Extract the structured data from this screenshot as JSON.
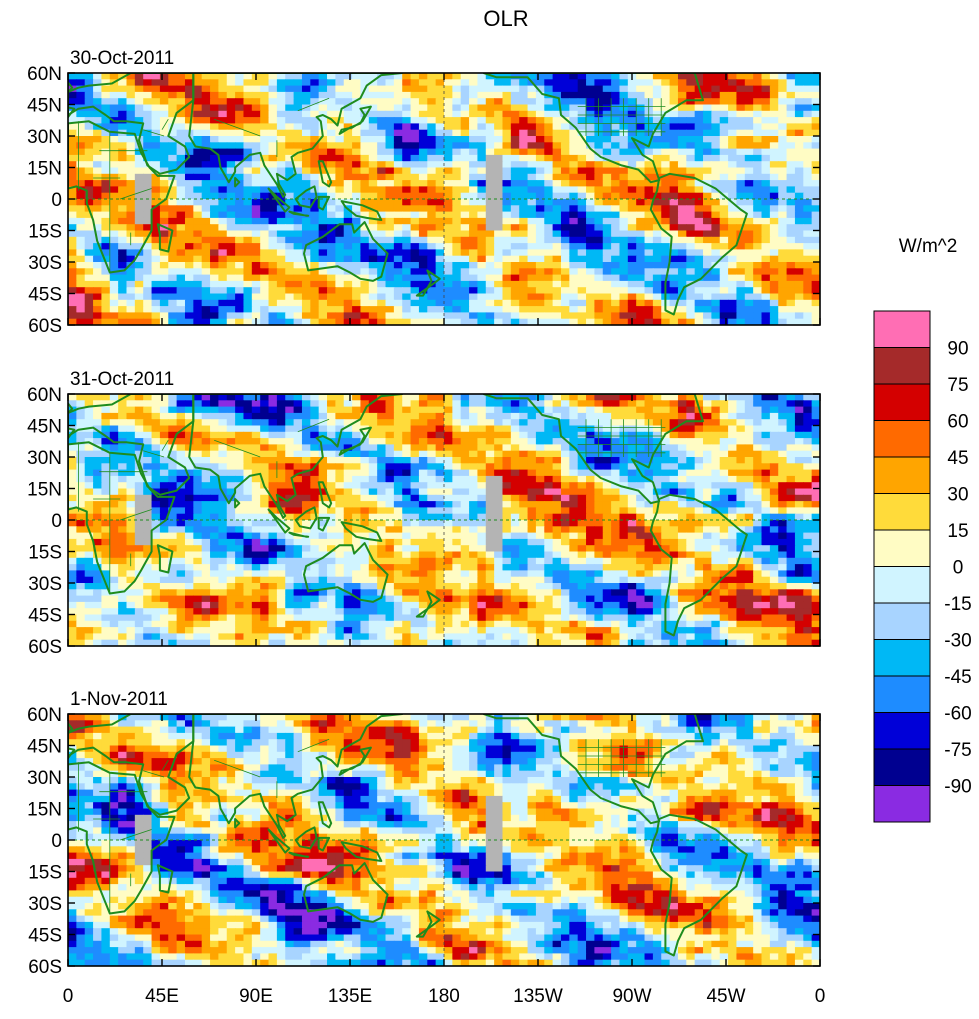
{
  "chart_data": {
    "type": "heatmap",
    "title": "OLR",
    "units_label": "W/m^2",
    "panels": [
      {
        "label": "30-Oct-2011"
      },
      {
        "label": "31-Oct-2011"
      },
      {
        "label": "1-Nov-2011"
      }
    ],
    "lat_ticks": [
      "60N",
      "45N",
      "30N",
      "15N",
      "0",
      "15S",
      "30S",
      "45S",
      "60S"
    ],
    "lon_ticks": [
      "0",
      "45E",
      "90E",
      "135E",
      "180",
      "135W",
      "90W",
      "45W",
      "0"
    ],
    "lat_range": [
      -60,
      60
    ],
    "lon_range": [
      0,
      360
    ],
    "colorbar": {
      "labels": [
        "90",
        "75",
        "60",
        "45",
        "30",
        "15",
        "0",
        "-15",
        "-30",
        "-45",
        "-60",
        "-75",
        "-90"
      ],
      "colors": [
        "#ff6eb4",
        "#a52a2a",
        "#d40000",
        "#ff6a00",
        "#ffa500",
        "#ffdb3a",
        "#fffcc4",
        "#d0f4ff",
        "#a8d4ff",
        "#00b8f5",
        "#1e8cff",
        "#0000d8",
        "#000090",
        "#8a2be2"
      ]
    },
    "colors": {
      "coast": "#1e8c1e",
      "missing": "#b4b4b4"
    }
  }
}
